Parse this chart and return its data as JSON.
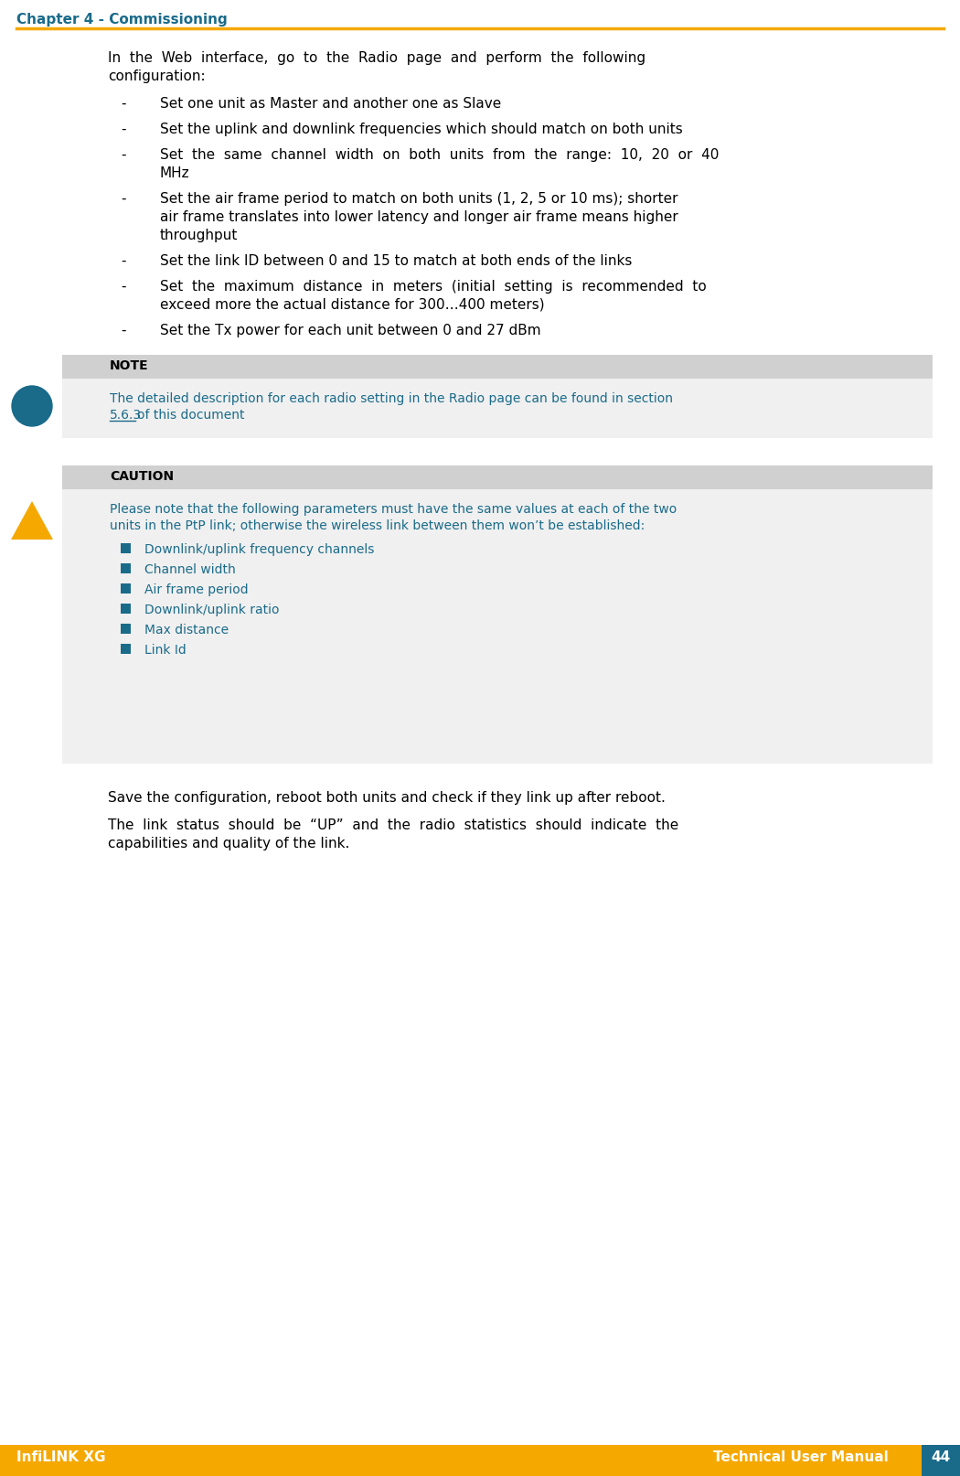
{
  "header_text": "Chapter 4 - Commissioning",
  "header_color": "#1a6b8a",
  "header_line_color": "#f5a800",
  "footer_bg_color": "#f5a800",
  "footer_left": "InfiLINK XG",
  "footer_right": "Technical User Manual",
  "footer_page": "44",
  "footer_text_color": "#ffffff",
  "body_text_color": "#000000",
  "teal_color": "#1a6b8a",
  "note_bg": "#e8e8e8",
  "caution_bg": "#e8e8e8",
  "bullet_color": "#1a6b8a",
  "intro_text": "In  the  Web  interface,  go  to  the  Radio  page  and  perform  the  following configuration:",
  "bullets": [
    "Set one unit as Master and another one as Slave",
    "Set the uplink and downlink frequencies which should match on both units",
    "Set  the  same  channel  width  on  both  units  from  the  range:  10,  20  or  40 MHz",
    "Set the air frame period to match on both units (1, 2, 5 or 10 ms); shorter air frame translates into lower latency and longer air frame means higher throughput",
    "Set the link ID between 0 and 15 to match at both ends of the links",
    "Set  the  maximum  distance  in  meters  (initial  setting  is  recommended  to exceed more the actual distance for 300…400 meters)",
    "Set the Tx power for each unit between 0 and 27 dBm"
  ],
  "note_title": "NOTE",
  "note_body": "The detailed description for each radio setting in the Radio page can be found in section 5.6.3 of this document",
  "note_link": "5.6.3",
  "caution_title": "CAUTION",
  "caution_body": "Please note that the following parameters must have the same values at each of the two units in the PtP link; otherwise the wireless link between them won’t be established:",
  "caution_items": [
    "Downlink/uplink frequency channels",
    "Channel width",
    "Air frame period",
    "Downlink/uplink ratio",
    "Max distance",
    "Link Id"
  ],
  "closing_text1": "Save the configuration, reboot both units and check if they link up after reboot.",
  "closing_text2": "The  link  status  should  be  “UP”  and  the  radio  statistics  should  indicate  the capabilities and quality of the link."
}
